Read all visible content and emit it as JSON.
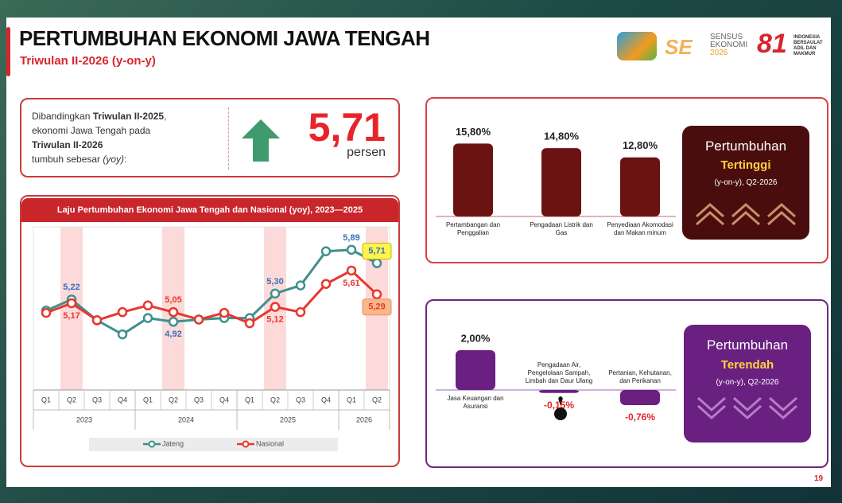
{
  "header": {
    "title": "PERTUMBUHAN EKONOMI JAWA TENGAH",
    "subtitle": "Triwulan II-2026 (y-on-y)"
  },
  "logos": {
    "sensus": [
      "SENSUS",
      "EKONOMI",
      "2026"
    ],
    "anniversary": "81",
    "motto": [
      "INDONESIA",
      "BERSAULAT",
      "ADIL DAN",
      "MAKMUR"
    ]
  },
  "summary": {
    "parts": [
      "Dibandingkan ",
      "Triwulan II-2025",
      ",",
      "ekonomi Jawa Tengah pada",
      "Triwulan II-2026",
      "tumbuh sebesar ",
      "(yoy)",
      ":"
    ],
    "value": "5,71",
    "unit": "persen"
  },
  "chart_data": {
    "type": "line",
    "title": "Laju Pertumbuhan Ekonomi Jawa Tengah dan Nasional (yoy), 2023—2025",
    "categories": [
      "Q1",
      "Q2",
      "Q3",
      "Q4",
      "Q1",
      "Q2",
      "Q3",
      "Q4",
      "Q1",
      "Q2",
      "Q3",
      "Q4",
      "Q1",
      "Q2"
    ],
    "years": [
      "2023",
      "2024",
      "2025",
      "2026"
    ],
    "highlight_category": "Q2",
    "ylim": [
      4,
      6.2
    ],
    "series": [
      {
        "name": "Jateng",
        "color": "#3f8f8f",
        "values": [
          5.07,
          5.22,
          4.94,
          4.75,
          4.97,
          4.92,
          4.95,
          4.97,
          4.97,
          5.3,
          5.41,
          5.87,
          5.89,
          5.71
        ],
        "value_labels": [
          null,
          "5,22",
          null,
          null,
          null,
          "4,92",
          null,
          null,
          null,
          "5,30",
          null,
          null,
          "5,89",
          "5,71"
        ]
      },
      {
        "name": "Nasional",
        "color": "#e8372c",
        "values": [
          5.04,
          5.17,
          4.94,
          5.05,
          5.14,
          5.05,
          4.95,
          5.04,
          4.9,
          5.12,
          5.05,
          5.43,
          5.61,
          5.29
        ],
        "value_labels": [
          null,
          "5,17",
          null,
          null,
          null,
          "5,05",
          null,
          null,
          null,
          "5,12",
          null,
          null,
          "5,61",
          "5,29"
        ]
      }
    ]
  },
  "highest": {
    "heading": "Pertumbuhan",
    "emphasis": "Tertinggi",
    "period": "(y-on-y), Q2-2026",
    "color": "#6b1313",
    "sectors": [
      {
        "label": "Pertambangan dan Penggalian",
        "value": 15.8,
        "value_label": "15,80%"
      },
      {
        "label": "Pengadaan Listrik dan Gas",
        "value": 14.8,
        "value_label": "14,80%"
      },
      {
        "label": "Penyediaan Akomodasi dan Makan minum",
        "value": 12.8,
        "value_label": "12,80%"
      }
    ]
  },
  "lowest": {
    "heading": "Pertumbuhan",
    "emphasis": "Terendah",
    "period": "(y-on-y), Q2-2026",
    "color": "#6a2080",
    "sectors": [
      {
        "label": "Jasa Keuangan dan Asuransi",
        "value": 2.0,
        "value_label": "2,00%"
      },
      {
        "label": "Pengadaan Air, Pengelolaan Sampah, Limbah dan Daur Ulang",
        "value": -0.15,
        "value_label": "-0,15%"
      },
      {
        "label": "Pertanian, Kehutanan, dan Perikanan",
        "value": -0.76,
        "value_label": "-0,76%"
      }
    ]
  },
  "page_number": "19"
}
